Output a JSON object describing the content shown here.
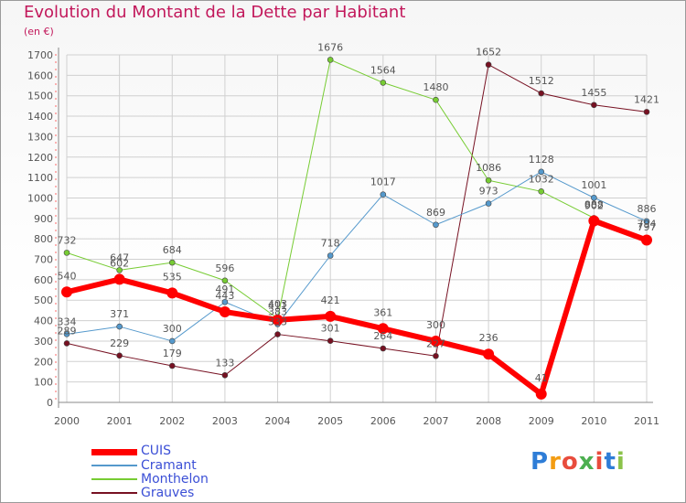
{
  "title": "Evolution du Montant de la Dette par Habitant",
  "unit": "(en €)",
  "logo": {
    "letters": [
      "P",
      "r",
      "o",
      "x",
      "i",
      "t",
      "i"
    ],
    "colors": [
      "#2e7dd7",
      "#f39c12",
      "#e84c3d",
      "#4caf50",
      "#e84c3d",
      "#2e7dd7",
      "#8bc34a"
    ]
  },
  "chart_data": {
    "type": "line",
    "title": "Evolution du Montant de la Dette par Habitant",
    "ylabel": "(en €)",
    "x": [
      "2000",
      "2001",
      "2002",
      "2003",
      "2004",
      "2005",
      "2006",
      "2007",
      "2008",
      "2009",
      "2010",
      "2011"
    ],
    "ylim": [
      0,
      1700
    ],
    "yticks": [
      0,
      100,
      200,
      300,
      400,
      500,
      600,
      700,
      800,
      900,
      1000,
      1100,
      1200,
      1300,
      1400,
      1500,
      1600,
      1700
    ],
    "grid": true,
    "legend_position": "bottom-left",
    "series": [
      {
        "name": "CUIS",
        "color": "#ff0000",
        "values": [
          540,
          602,
          535,
          443,
          403,
          421,
          361,
          300,
          236,
          41,
          888,
          794
        ]
      },
      {
        "name": "Cramant",
        "color": "#5599cc",
        "values": [
          334,
          371,
          300,
          491,
          383,
          718,
          1017,
          869,
          973,
          1128,
          1001,
          886
        ]
      },
      {
        "name": "Monthelon",
        "color": "#77cc33",
        "values": [
          732,
          647,
          684,
          596,
          411,
          1676,
          1564,
          1480,
          1086,
          1032,
          902,
          797
        ]
      },
      {
        "name": "Grauves",
        "color": "#771122",
        "values": [
          289,
          229,
          179,
          133,
          333,
          301,
          264,
          227,
          1652,
          1512,
          1455,
          1421
        ]
      }
    ]
  }
}
